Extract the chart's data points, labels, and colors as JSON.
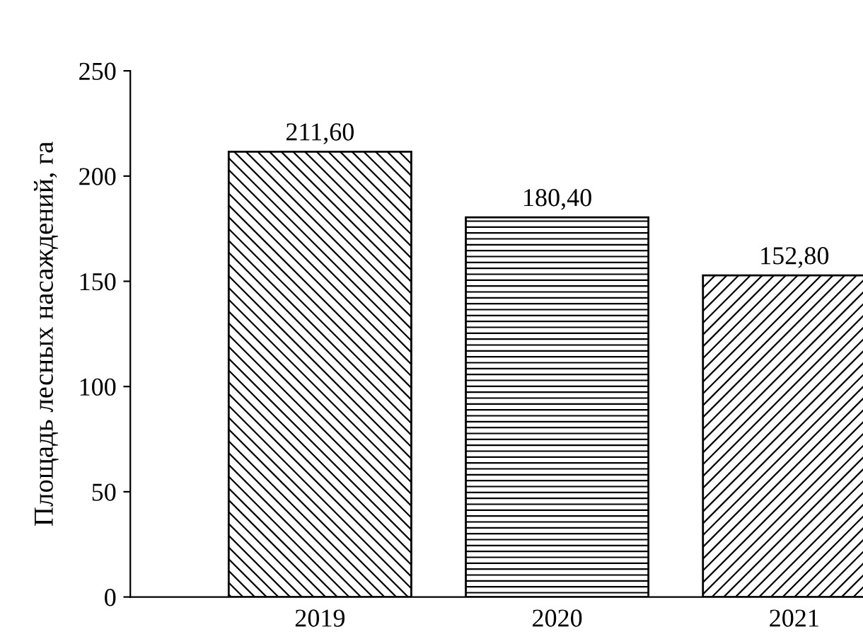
{
  "chart_data": {
    "type": "bar",
    "ylabel": "Площадь лесных насаждений, га",
    "categories": [
      "2019",
      "2020",
      "2021"
    ],
    "values": [
      211.6,
      180.4,
      152.8
    ],
    "value_labels": [
      "211,60",
      "180,40",
      "152,80"
    ],
    "color": "#000000",
    "ylim": [
      0,
      250
    ],
    "yticks": [
      0,
      50,
      100,
      150,
      200,
      250
    ],
    "grid": false,
    "legend": false
  }
}
